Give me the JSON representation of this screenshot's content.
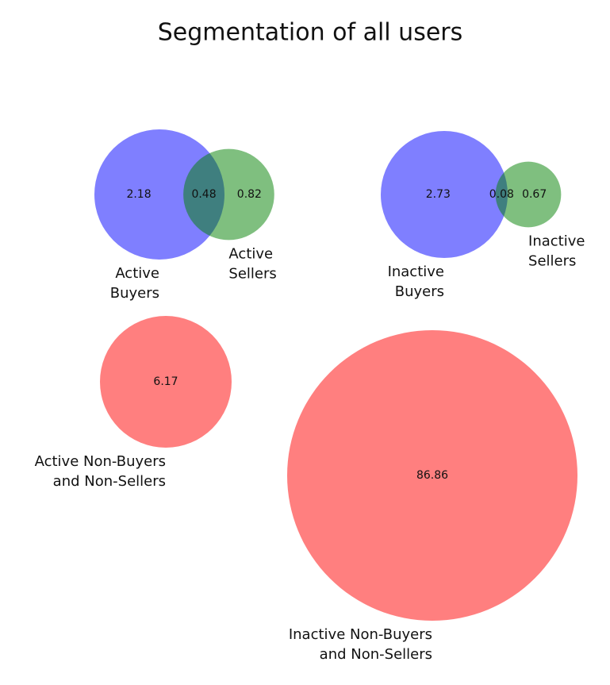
{
  "title": "Segmentation of all users",
  "chart_data": [
    {
      "type": "venn",
      "set_labels": [
        [
          "Active",
          "Buyers"
        ],
        [
          "Active",
          "Sellers"
        ]
      ],
      "colors": [
        "#0000ff",
        "#008000"
      ],
      "values": [
        2.18,
        0.48,
        0.82
      ]
    },
    {
      "type": "venn",
      "set_labels": [
        [
          "Inactive",
          "Buyers"
        ],
        [
          "Inactive",
          "Sellers"
        ]
      ],
      "colors": [
        "#0000ff",
        "#008000"
      ],
      "values": [
        2.73,
        0.08,
        0.67
      ]
    },
    {
      "type": "venn",
      "set_labels": [
        [
          "Active Non-Buyers",
          "and Non-Sellers"
        ]
      ],
      "colors": [
        "#ff0000"
      ],
      "values": [
        6.17
      ]
    },
    {
      "type": "venn",
      "set_labels": [
        [
          "Inactive Non-Buyers",
          "and Non-Sellers"
        ]
      ],
      "colors": [
        "#ff0000"
      ],
      "values": [
        86.86
      ]
    }
  ]
}
